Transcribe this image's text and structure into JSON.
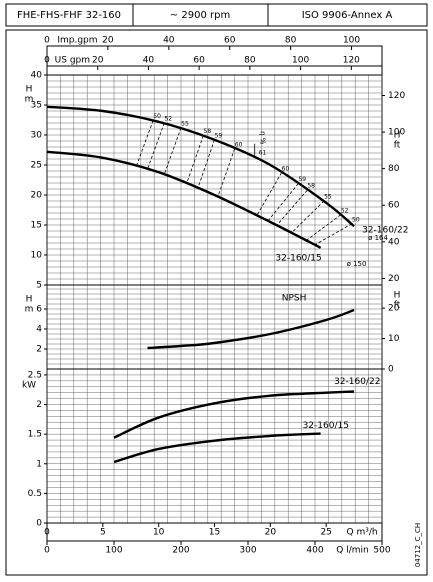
{
  "header": [
    "FHE-FHS-FHF 32-160",
    "~ 2900 rpm",
    "ISO 9906-Annex A"
  ],
  "code": "04712_C_CH",
  "chart_data": {
    "type": "line",
    "xlim": [
      0,
      30
    ],
    "xticks": [
      0,
      5,
      10,
      15,
      20,
      25
    ],
    "xlabel": "Q m³/h",
    "x2lim": [
      0,
      500
    ],
    "x2ticks": [
      0,
      100,
      200,
      300,
      400,
      500
    ],
    "x2label": "Q l/min",
    "grid_x": [
      0,
      20,
      40,
      60,
      80,
      100,
      120,
      140,
      160,
      180,
      200,
      220,
      240,
      260,
      280,
      300,
      320,
      340,
      360,
      380,
      400,
      420,
      440,
      460,
      480,
      500
    ],
    "top_axes": [
      {
        "label": "Imp.gpm",
        "xlim": [
          0,
          110
        ],
        "ticks": [
          0,
          20,
          40,
          60,
          80,
          100
        ]
      },
      {
        "label": "US gpm",
        "xlim": [
          0,
          132.1
        ],
        "ticks": [
          0,
          20,
          40,
          60,
          80,
          100,
          120
        ]
      }
    ],
    "panels": [
      {
        "ylabel": "H",
        "yunit": "m",
        "ylim": [
          5,
          40
        ],
        "yticks": [
          5,
          10,
          15,
          20,
          25,
          30,
          35,
          40
        ],
        "y2label": "H",
        "y2unit": "ft",
        "y2lim": [
          16.4,
          131.2
        ],
        "y2ticks": [
          20,
          40,
          60,
          80,
          100,
          120
        ],
        "grid_y": [
          5,
          6,
          7,
          8,
          9,
          10,
          11,
          12,
          13,
          14,
          15,
          16,
          17,
          18,
          19,
          20,
          21,
          22,
          23,
          24,
          25,
          26,
          27,
          28,
          29,
          30,
          31,
          32,
          33,
          34,
          35,
          36,
          37,
          38,
          39,
          40
        ],
        "series": [
          {
            "name": "32-160/22",
            "impeller": "ø 164",
            "color": "#000000",
            "x": [
              0,
              5,
              10,
              15,
              20,
              25,
              27.5
            ],
            "values": [
              34.7,
              34,
              32.2,
              29.2,
              25,
              18.7,
              14.8
            ]
          },
          {
            "name": "32-160/15",
            "impeller": "ø 150",
            "color": "#000000",
            "x": [
              0,
              5,
              10,
              15,
              20,
              24.5
            ],
            "values": [
              27.2,
              26.2,
              23.8,
              20,
              15.5,
              11.2
            ]
          }
        ],
        "efficiency": {
          "label": "η %",
          "lines": [
            {
              "value": 50,
              "x": [
                9.5,
                8
              ],
              "y": [
                32.4,
                24.8
              ]
            },
            {
              "value": 52,
              "x": [
                10.5,
                9
              ],
              "y": [
                32,
                24.3
              ]
            },
            {
              "value": 55,
              "x": [
                12,
                10.5
              ],
              "y": [
                31.2,
                23.4
              ]
            },
            {
              "value": 58,
              "x": [
                14,
                12.5
              ],
              "y": [
                29.9,
                21.9
              ]
            },
            {
              "value": 59,
              "x": [
                15,
                13.5
              ],
              "y": [
                29.2,
                21.1
              ]
            },
            {
              "value": 60,
              "x": [
                16.8,
                15.3
              ],
              "y": [
                27.7,
                19.7
              ]
            },
            {
              "value": 60,
              "x": [
                21,
                18.8
              ],
              "y": [
                23.7,
                16.6
              ]
            },
            {
              "value": 59,
              "x": [
                22.5,
                19.8
              ],
              "y": [
                21.9,
                15.7
              ]
            },
            {
              "value": 58,
              "x": [
                23.3,
                20.6
              ],
              "y": [
                20.8,
                15
              ]
            },
            {
              "value": 55,
              "x": [
                24.8,
                21.9
              ],
              "y": [
                19,
                13.7
              ]
            },
            {
              "value": 52,
              "x": [
                26.3,
                23.2
              ],
              "y": [
                16.7,
                12.4
              ]
            },
            {
              "value": 50,
              "x": [
                27.3,
                24
              ],
              "y": [
                15.2,
                11.7
              ]
            }
          ],
          "peak": {
            "value": 61,
            "x": 18.6,
            "y": 26.2
          }
        }
      },
      {
        "ylabel": "H",
        "yunit": "m",
        "ylim": [
          0,
          8.4
        ],
        "yticks": [
          2,
          4,
          6
        ],
        "y2label": "H",
        "y2unit": "ft",
        "y2lim": [
          0,
          27.6
        ],
        "y2ticks": [
          0,
          10,
          20
        ],
        "grid_y": [
          0,
          0.5,
          1,
          1.5,
          2,
          2.5,
          3,
          3.5,
          4,
          4.5,
          5,
          5.5,
          6,
          6.5,
          7,
          7.5,
          8
        ],
        "series": [
          {
            "name": "NPSH",
            "color": "#000000",
            "x": [
              9,
              12,
              15,
              20,
              25,
              27.5
            ],
            "values": [
              2.1,
              2.3,
              2.6,
              3.5,
              4.9,
              5.9
            ]
          }
        ]
      },
      {
        "ylabel": "kW",
        "ylim": [
          0,
          2.6
        ],
        "yticks": [
          0,
          0.5,
          1,
          1.5,
          2,
          2.5
        ],
        "grid_y": [
          0,
          0.1,
          0.2,
          0.3,
          0.4,
          0.5,
          0.6,
          0.7,
          0.8,
          0.9,
          1,
          1.1,
          1.2,
          1.3,
          1.4,
          1.5,
          1.6,
          1.7,
          1.8,
          1.9,
          2,
          2.1,
          2.2,
          2.3,
          2.4,
          2.5
        ],
        "series": [
          {
            "name": "32-160/22",
            "color": "#000000",
            "x": [
              6,
              10,
              15,
              20,
              25,
              27.5
            ],
            "values": [
              1.44,
              1.78,
              2.02,
              2.15,
              2.2,
              2.22
            ]
          },
          {
            "name": "32-160/15",
            "color": "#000000",
            "x": [
              6,
              10,
              15,
              20,
              24.5
            ],
            "values": [
              1.03,
              1.25,
              1.39,
              1.47,
              1.51
            ]
          }
        ]
      }
    ]
  }
}
